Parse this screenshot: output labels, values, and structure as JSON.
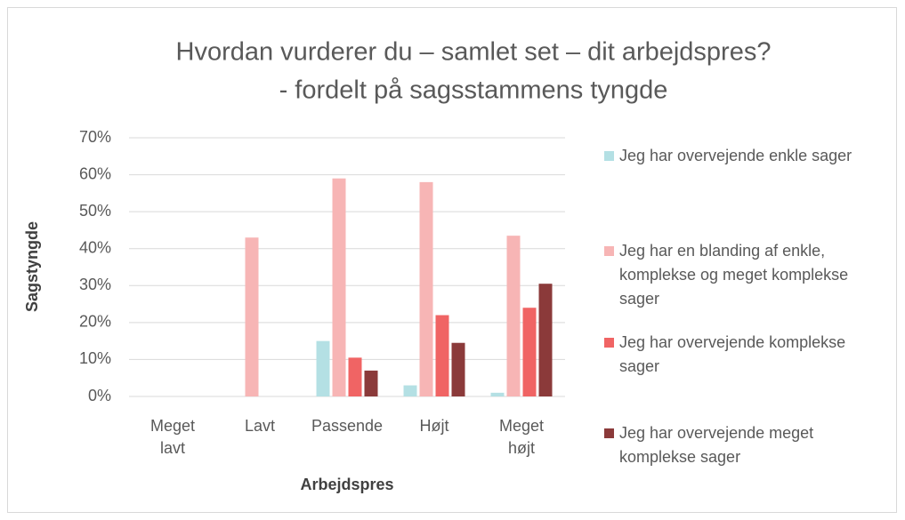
{
  "chart_data": {
    "type": "bar",
    "title": "Hvordan vurderer du – samlet set – dit arbejdspres?",
    "subtitle": "- fordelt på sagsstammens tyngde",
    "x_label": "Arbejdspres",
    "y_label": "Sagstyngde",
    "categories": [
      "Meget lavt",
      "Lavt",
      "Passende",
      "Højt",
      "Meget højt"
    ],
    "series": [
      {
        "name": "Jeg har overvejende enkle sager",
        "color": "#b4e0e4",
        "values": [
          0,
          0,
          15,
          3,
          1
        ]
      },
      {
        "name": "Jeg har en blanding af enkle, komplekse og meget komplekse sager",
        "color": "#f7b5b5",
        "values": [
          0,
          43,
          59,
          58,
          43.5
        ]
      },
      {
        "name": "Jeg har overvejende komplekse sager",
        "color": "#f06464",
        "values": [
          0,
          0,
          10.5,
          22,
          24
        ]
      },
      {
        "name": "Jeg har overvejende meget komplekse sager",
        "color": "#8b3a3a",
        "values": [
          0,
          0,
          7,
          14.5,
          30.5
        ]
      }
    ],
    "ylim": [
      0,
      70
    ],
    "yticks": [
      {
        "value": 0,
        "label": "0%"
      },
      {
        "value": 10,
        "label": "10%"
      },
      {
        "value": 20,
        "label": "20%"
      },
      {
        "value": 30,
        "label": "30%"
      },
      {
        "value": 40,
        "label": "40%"
      },
      {
        "value": 50,
        "label": "50%"
      },
      {
        "value": 60,
        "label": "60%"
      },
      {
        "value": 70,
        "label": "70%"
      }
    ],
    "grid": true,
    "legend": "right"
  }
}
